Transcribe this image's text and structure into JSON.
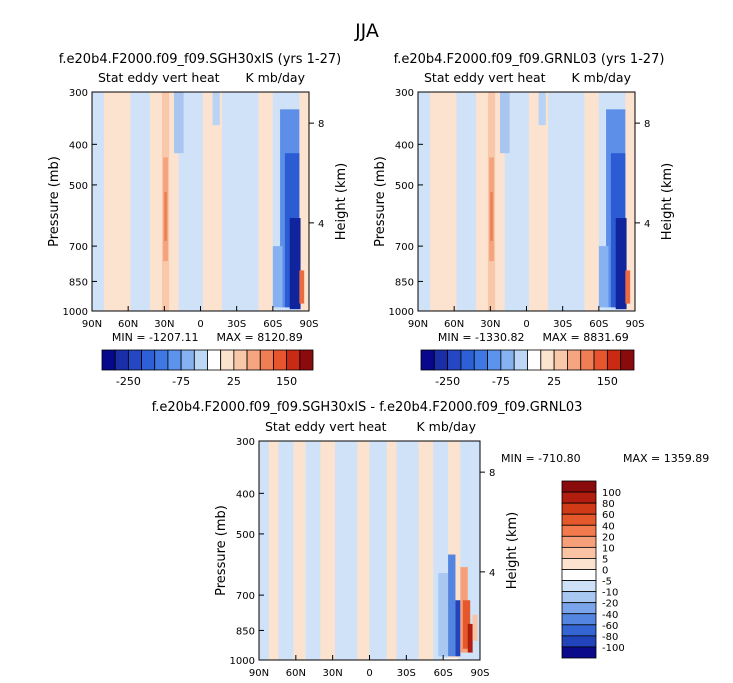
{
  "figure": {
    "title": "JJA"
  },
  "chart_data": [
    {
      "type": "heatmap",
      "title": "f.e20b4.F2000.f09_f09.SGH30xlS (yrs 1-27)",
      "subtitle_left": "Stat eddy vert heat",
      "subtitle_right": "K mb/day",
      "ylabel": "Pressure (mb)",
      "y2label": "Height (km)",
      "x_ticks": [
        "90N",
        "60N",
        "30N",
        "0",
        "30S",
        "60S",
        "90S"
      ],
      "y_ticks": [
        "300",
        "400",
        "500",
        "700",
        "850",
        "1000"
      ],
      "y_tick_values": [
        300,
        400,
        500,
        700,
        850,
        1000
      ],
      "y2_ticks": [
        "8",
        "4"
      ],
      "xlim": [
        90,
        -90
      ],
      "ylim": [
        1000,
        300
      ],
      "y_scale": "log",
      "min_label": "MIN = -1207.11",
      "max_label": "MAX = 8120.89",
      "min": -1207.11,
      "max": 8120.89,
      "colorbar": {
        "orientation": "horizontal",
        "labels": [
          "-250",
          "-75",
          "25",
          "150"
        ],
        "colors": [
          "#08088c",
          "#1a2ea8",
          "#2547c2",
          "#2d5fd6",
          "#3f78e3",
          "#5c93ec",
          "#86b2f2",
          "#bcd8f5",
          "#ffffff",
          "#fbe3ce",
          "#f8c8a8",
          "#f5a680",
          "#f07e55",
          "#e6552d",
          "#c92a13",
          "#8a0b0b"
        ]
      }
    },
    {
      "type": "heatmap",
      "title": "f.e20b4.F2000.f09_f09.GRNL03 (yrs 1-27)",
      "subtitle_left": "Stat eddy vert heat",
      "subtitle_right": "K mb/day",
      "ylabel": "Pressure (mb)",
      "y2label": "Height (km)",
      "x_ticks": [
        "90N",
        "60N",
        "30N",
        "0",
        "30S",
        "60S",
        "90S"
      ],
      "y_ticks": [
        "300",
        "400",
        "500",
        "700",
        "850",
        "1000"
      ],
      "y_tick_values": [
        300,
        400,
        500,
        700,
        850,
        1000
      ],
      "y2_ticks": [
        "8",
        "4"
      ],
      "xlim": [
        90,
        -90
      ],
      "ylim": [
        1000,
        300
      ],
      "y_scale": "log",
      "min_label": "MIN = -1330.82",
      "max_label": "MAX = 8831.69",
      "min": -1330.82,
      "max": 8831.69,
      "colorbar": {
        "orientation": "horizontal",
        "labels": [
          "-250",
          "-75",
          "25",
          "150"
        ],
        "colors": [
          "#08088c",
          "#1a2ea8",
          "#2547c2",
          "#2d5fd6",
          "#3f78e3",
          "#5c93ec",
          "#86b2f2",
          "#bcd8f5",
          "#ffffff",
          "#fbe3ce",
          "#f8c8a8",
          "#f5a680",
          "#f07e55",
          "#e6552d",
          "#c92a13",
          "#8a0b0b"
        ]
      }
    },
    {
      "type": "heatmap",
      "title": "f.e20b4.F2000.f09_f09.SGH30xlS - f.e20b4.F2000.f09_f09.GRNL03",
      "subtitle_left": "Stat eddy vert heat",
      "subtitle_right": "K mb/day",
      "ylabel": "Pressure (mb)",
      "y2label": "Height (km)",
      "x_ticks": [
        "90N",
        "60N",
        "30N",
        "0",
        "30S",
        "60S",
        "90S"
      ],
      "y_ticks": [
        "300",
        "400",
        "500",
        "700",
        "850",
        "1000"
      ],
      "y_tick_values": [
        300,
        400,
        500,
        700,
        850,
        1000
      ],
      "y2_ticks": [
        "8",
        "4"
      ],
      "xlim": [
        90,
        -90
      ],
      "ylim": [
        1000,
        300
      ],
      "y_scale": "log",
      "min_label": "MIN = -710.80",
      "max_label": "MAX = 1359.89",
      "min": -710.8,
      "max": 1359.89,
      "colorbar": {
        "orientation": "vertical",
        "labels": [
          "100",
          "80",
          "60",
          "40",
          "20",
          "10",
          "5",
          "0",
          "-5",
          "-10",
          "-20",
          "-40",
          "-60",
          "-80",
          "-100"
        ],
        "colors": [
          "#8a0b0b",
          "#b11d0e",
          "#d03a17",
          "#e5582c",
          "#f27a4c",
          "#f6a07a",
          "#f9c3a4",
          "#fce3d0",
          "#ffffff",
          "#cfe1f6",
          "#a8c7f1",
          "#7aa5ea",
          "#5485e0",
          "#3565d3",
          "#2144bb",
          "#0a0a8a"
        ]
      }
    }
  ]
}
